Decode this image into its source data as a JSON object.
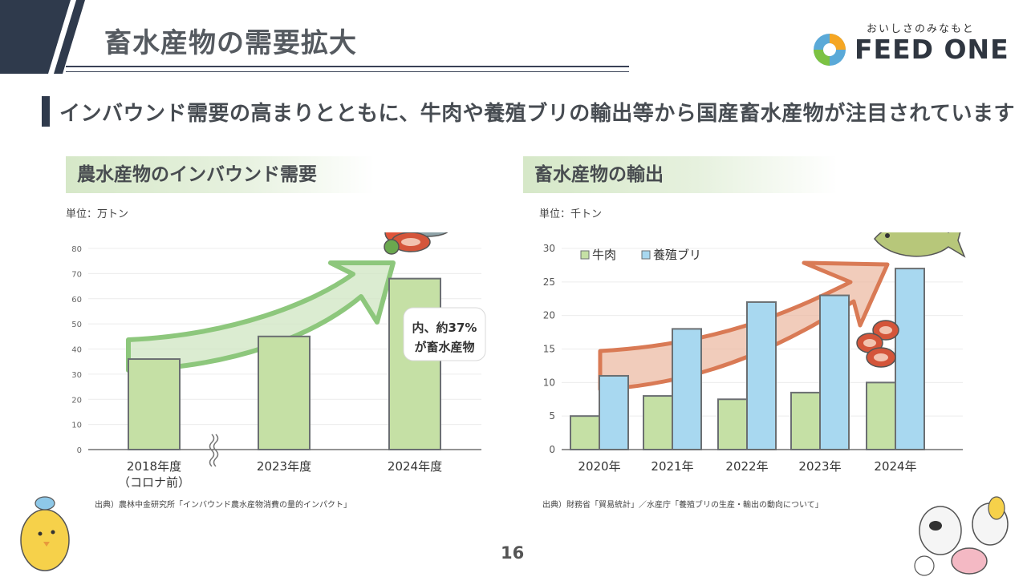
{
  "header": {
    "title": "畜水産物の需要拡大",
    "brand_tagline": "おいしさのみなもと",
    "brand_name": "FEED ONE"
  },
  "subtitle": "インバウンド需要の高まりとともに、牛肉や養殖ブリの輸出等から国産畜水産物が注目されています",
  "colors": {
    "navy": "#2f3a4c",
    "green_bar": "#c5e0a5",
    "blue_bar": "#a8d8f0",
    "bar_stroke": "#6b6f72",
    "green_arrow": "#8dc77c",
    "orange_arrow": "#d97a55"
  },
  "left_panel": {
    "heading": "農水産物のインバウンド需要",
    "unit": "単位：万トン",
    "callout": [
      "内、約37%",
      "が畜水産物"
    ],
    "source": "出典）農林中金研究所「インバウンド農水産物消費の量的インパクト」"
  },
  "right_panel": {
    "heading": "畜水産物の輸出",
    "unit": "単位：千トン",
    "source": "出典）財務省「貿易統計」／水産庁「養殖ブリの生産・輸出の動向について」"
  },
  "page_number": "16",
  "chart_data": [
    {
      "type": "bar",
      "title": "農水産物のインバウンド需要",
      "ylabel": "万トン",
      "ylim": [
        0,
        80
      ],
      "yticks": [
        "0",
        "10",
        "20",
        "30",
        "40",
        "50",
        "60",
        "70",
        "80"
      ],
      "categories": [
        [
          "2018年度",
          "（コロナ前）"
        ],
        [
          "2023年度"
        ],
        [
          "2024年度"
        ]
      ],
      "values": [
        36,
        45,
        68
      ],
      "axis_break_between": [
        0,
        1
      ]
    },
    {
      "type": "bar",
      "title": "畜水産物の輸出",
      "ylabel": "千トン",
      "ylim": [
        0,
        30
      ],
      "yticks": [
        "0",
        "5",
        "10",
        "15",
        "20",
        "25",
        "30"
      ],
      "categories": [
        "2020年",
        "2021年",
        "2022年",
        "2023年",
        "2024年"
      ],
      "series": [
        {
          "name": "牛肉",
          "values": [
            5,
            8,
            7.5,
            8.5,
            10
          ]
        },
        {
          "name": "養殖ブリ",
          "values": [
            11,
            18,
            22,
            23,
            27
          ]
        }
      ],
      "legend": "top-left"
    }
  ]
}
